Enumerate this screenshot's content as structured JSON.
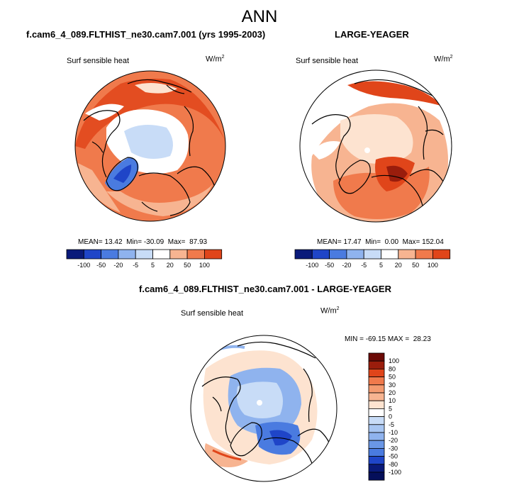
{
  "title": "ANN",
  "colors": {
    "levels": [
      "#0a1a7a",
      "#1f45c8",
      "#4a7be0",
      "#8fb3ee",
      "#c8dcf7",
      "#fde3d0",
      "#f7b491",
      "#f07a4c",
      "#e0451a",
      "#9a1d0c",
      "#6b0a06"
    ],
    "coast": "#000000",
    "land_white": "#ffffff"
  },
  "panels": [
    {
      "id": "model",
      "title": "f.cam6_4_089.FLTHIST_ne30.cam7.001 (yrs 1995-2003)",
      "variable": "Surf sensible heat",
      "units_base": "W/m",
      "units_exp": "2",
      "stats": {
        "mean_label": "MEAN=",
        "mean": "13.42",
        "min_label": "Min=",
        "min": "-30.09",
        "max_label": "Max=",
        "max": "87.93"
      }
    },
    {
      "id": "obs",
      "title": "LARGE-YEAGER",
      "variable": "Surf sensible heat",
      "units_base": "W/m",
      "units_exp": "2",
      "stats": {
        "mean_label": "MEAN=",
        "mean": "17.47",
        "min_label": "Min=",
        "min": "0.00",
        "max_label": "Max=",
        "max": "152.04"
      }
    },
    {
      "id": "diff",
      "title": "f.cam6_4_089.FLTHIST_ne30.cam7.001 - LARGE-YEAGER",
      "variable": "Surf sensible heat",
      "units_base": "W/m",
      "units_exp": "2",
      "stats": {
        "min_label": "MIN =",
        "min": "-69.15",
        "max_label": "MAX =",
        "max": "28.23"
      }
    }
  ],
  "chart_data": [
    {
      "type": "heatmap",
      "projection": "north-polar-stereographic",
      "title": "f.cam6_4_089.FLTHIST_ne30.cam7.001 (yrs 1995-2003)",
      "variable": "Surf sensible heat",
      "units": "W/m2",
      "mean": 13.42,
      "min": -30.09,
      "max": 87.93,
      "colorbar_levels": [
        -100,
        -50,
        -20,
        -5,
        5,
        20,
        50,
        100
      ],
      "colorbar_tick_labels": [
        "-100",
        "-50",
        "-20",
        "-5",
        "5",
        "20",
        "50",
        "100"
      ],
      "colorbar_orientation": "horizontal"
    },
    {
      "type": "heatmap",
      "projection": "north-polar-stereographic",
      "title": "LARGE-YEAGER",
      "variable": "Surf sensible heat",
      "units": "W/m2",
      "mean": 17.47,
      "min": 0.0,
      "max": 152.04,
      "colorbar_levels": [
        -100,
        -50,
        -20,
        -5,
        5,
        20,
        50,
        100
      ],
      "colorbar_tick_labels": [
        "-100",
        "-50",
        "-20",
        "-5",
        "5",
        "20",
        "50",
        "100"
      ],
      "colorbar_orientation": "horizontal"
    },
    {
      "type": "heatmap",
      "projection": "north-polar-stereographic",
      "title": "f.cam6_4_089.FLTHIST_ne30.cam7.001 - LARGE-YEAGER",
      "variable": "Surf sensible heat",
      "units": "W/m2",
      "min": -69.15,
      "max": 28.23,
      "colorbar_levels": [
        100,
        80,
        50,
        30,
        20,
        10,
        5,
        0,
        -5,
        -10,
        -20,
        -30,
        -50,
        -80,
        -100
      ],
      "colorbar_tick_labels": [
        "100",
        "80",
        "50",
        "30",
        "20",
        "10",
        "5",
        "0",
        "-5",
        "-10",
        "-20",
        "-30",
        "-50",
        "-80",
        "-100"
      ],
      "colorbar_orientation": "vertical"
    }
  ]
}
